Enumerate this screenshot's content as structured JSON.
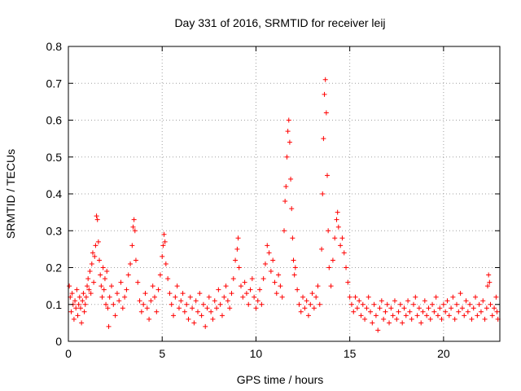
{
  "chart_data": {
    "type": "scatter",
    "title": "Day 331 of 2016, SRMTID for receiver leij",
    "xlabel": "GPS time / hours",
    "ylabel": "SRMTID / TECUs",
    "xlim": [
      0,
      23
    ],
    "ylim": [
      0,
      0.8
    ],
    "x_ticks": [
      0,
      5,
      10,
      15,
      20
    ],
    "x_tick_labels": [
      "0",
      "5",
      "10",
      "15",
      "20"
    ],
    "y_ticks": [
      0,
      0.1,
      0.2,
      0.3,
      0.4,
      0.5,
      0.6,
      0.7,
      0.8
    ],
    "y_tick_labels": [
      "0",
      "0.1",
      "0.2",
      "0.3",
      "0.4",
      "0.5",
      "0.6",
      "0.7",
      "0.8"
    ],
    "grid": true,
    "marker": "+",
    "color": "#ff0000",
    "series": [
      {
        "name": "SRMTID",
        "points": [
          [
            0.05,
            0.15
          ],
          [
            0.1,
            0.12
          ],
          [
            0.15,
            0.08
          ],
          [
            0.2,
            0.13
          ],
          [
            0.25,
            0.1
          ],
          [
            0.3,
            0.06
          ],
          [
            0.35,
            0.11
          ],
          [
            0.4,
            0.09
          ],
          [
            0.45,
            0.14
          ],
          [
            0.5,
            0.07
          ],
          [
            0.55,
            0.1
          ],
          [
            0.6,
            0.12
          ],
          [
            0.65,
            0.09
          ],
          [
            0.7,
            0.05
          ],
          [
            0.75,
            0.11
          ],
          [
            0.8,
            0.13
          ],
          [
            0.85,
            0.08
          ],
          [
            0.9,
            0.1
          ],
          [
            0.95,
            0.12
          ],
          [
            1.0,
            0.15
          ],
          [
            1.05,
            0.17
          ],
          [
            1.1,
            0.14
          ],
          [
            1.15,
            0.19
          ],
          [
            1.2,
            0.13
          ],
          [
            1.25,
            0.21
          ],
          [
            1.3,
            0.24
          ],
          [
            1.35,
            0.16
          ],
          [
            1.4,
            0.23
          ],
          [
            1.45,
            0.26
          ],
          [
            1.5,
            0.34
          ],
          [
            1.55,
            0.33
          ],
          [
            1.6,
            0.27
          ],
          [
            1.65,
            0.22
          ],
          [
            1.7,
            0.18
          ],
          [
            1.75,
            0.15
          ],
          [
            1.8,
            0.12
          ],
          [
            1.85,
            0.2
          ],
          [
            1.9,
            0.14
          ],
          [
            1.95,
            0.17
          ],
          [
            2.0,
            0.1
          ],
          [
            2.05,
            0.19
          ],
          [
            2.1,
            0.09
          ],
          [
            2.15,
            0.04
          ],
          [
            2.2,
            0.12
          ],
          [
            2.3,
            0.15
          ],
          [
            2.4,
            0.1
          ],
          [
            2.5,
            0.07
          ],
          [
            2.6,
            0.13
          ],
          [
            2.7,
            0.11
          ],
          [
            2.8,
            0.16
          ],
          [
            2.9,
            0.09
          ],
          [
            3.0,
            0.12
          ],
          [
            3.1,
            0.14
          ],
          [
            3.2,
            0.18
          ],
          [
            3.3,
            0.21
          ],
          [
            3.4,
            0.26
          ],
          [
            3.45,
            0.31
          ],
          [
            3.5,
            0.33
          ],
          [
            3.55,
            0.3
          ],
          [
            3.6,
            0.22
          ],
          [
            3.7,
            0.16
          ],
          [
            3.8,
            0.11
          ],
          [
            3.9,
            0.08
          ],
          [
            4.0,
            0.1
          ],
          [
            4.1,
            0.13
          ],
          [
            4.2,
            0.09
          ],
          [
            4.3,
            0.06
          ],
          [
            4.4,
            0.11
          ],
          [
            4.5,
            0.15
          ],
          [
            4.6,
            0.12
          ],
          [
            4.7,
            0.08
          ],
          [
            4.8,
            0.14
          ],
          [
            4.9,
            0.18
          ],
          [
            5.0,
            0.23
          ],
          [
            5.05,
            0.26
          ],
          [
            5.1,
            0.29
          ],
          [
            5.15,
            0.27
          ],
          [
            5.2,
            0.21
          ],
          [
            5.3,
            0.17
          ],
          [
            5.4,
            0.13
          ],
          [
            5.5,
            0.1
          ],
          [
            5.6,
            0.07
          ],
          [
            5.7,
            0.12
          ],
          [
            5.8,
            0.15
          ],
          [
            5.9,
            0.09
          ],
          [
            6.0,
            0.11
          ],
          [
            6.1,
            0.13
          ],
          [
            6.2,
            0.08
          ],
          [
            6.3,
            0.1
          ],
          [
            6.4,
            0.06
          ],
          [
            6.5,
            0.12
          ],
          [
            6.6,
            0.09
          ],
          [
            6.7,
            0.05
          ],
          [
            6.8,
            0.11
          ],
          [
            6.9,
            0.08
          ],
          [
            7.0,
            0.13
          ],
          [
            7.1,
            0.07
          ],
          [
            7.2,
            0.1
          ],
          [
            7.3,
            0.04
          ],
          [
            7.4,
            0.09
          ],
          [
            7.5,
            0.12
          ],
          [
            7.6,
            0.08
          ],
          [
            7.7,
            0.06
          ],
          [
            7.8,
            0.11
          ],
          [
            7.9,
            0.09
          ],
          [
            8.0,
            0.14
          ],
          [
            8.1,
            0.1
          ],
          [
            8.2,
            0.07
          ],
          [
            8.3,
            0.12
          ],
          [
            8.4,
            0.15
          ],
          [
            8.5,
            0.11
          ],
          [
            8.6,
            0.09
          ],
          [
            8.7,
            0.13
          ],
          [
            8.8,
            0.17
          ],
          [
            8.9,
            0.22
          ],
          [
            9.0,
            0.25
          ],
          [
            9.05,
            0.28
          ],
          [
            9.1,
            0.2
          ],
          [
            9.2,
            0.15
          ],
          [
            9.3,
            0.12
          ],
          [
            9.4,
            0.16
          ],
          [
            9.5,
            0.13
          ],
          [
            9.6,
            0.1
          ],
          [
            9.7,
            0.14
          ],
          [
            9.8,
            0.17
          ],
          [
            9.9,
            0.12
          ],
          [
            10.0,
            0.09
          ],
          [
            10.1,
            0.11
          ],
          [
            10.2,
            0.14
          ],
          [
            10.3,
            0.1
          ],
          [
            10.4,
            0.17
          ],
          [
            10.5,
            0.21
          ],
          [
            10.6,
            0.26
          ],
          [
            10.7,
            0.24
          ],
          [
            10.8,
            0.19
          ],
          [
            10.9,
            0.22
          ],
          [
            11.0,
            0.16
          ],
          [
            11.1,
            0.13
          ],
          [
            11.2,
            0.18
          ],
          [
            11.3,
            0.15
          ],
          [
            11.4,
            0.12
          ],
          [
            11.5,
            0.3
          ],
          [
            11.55,
            0.38
          ],
          [
            11.6,
            0.42
          ],
          [
            11.65,
            0.5
          ],
          [
            11.7,
            0.57
          ],
          [
            11.75,
            0.6
          ],
          [
            11.8,
            0.54
          ],
          [
            11.85,
            0.44
          ],
          [
            11.9,
            0.36
          ],
          [
            11.95,
            0.28
          ],
          [
            12.0,
            0.22
          ],
          [
            12.05,
            0.18
          ],
          [
            12.1,
            0.2
          ],
          [
            12.2,
            0.14
          ],
          [
            12.3,
            0.1
          ],
          [
            12.4,
            0.08
          ],
          [
            12.5,
            0.12
          ],
          [
            12.6,
            0.09
          ],
          [
            12.7,
            0.11
          ],
          [
            12.8,
            0.07
          ],
          [
            12.9,
            0.1
          ],
          [
            13.0,
            0.13
          ],
          [
            13.1,
            0.09
          ],
          [
            13.2,
            0.12
          ],
          [
            13.3,
            0.15
          ],
          [
            13.4,
            0.1
          ],
          [
            13.5,
            0.25
          ],
          [
            13.55,
            0.4
          ],
          [
            13.6,
            0.55
          ],
          [
            13.65,
            0.67
          ],
          [
            13.7,
            0.71
          ],
          [
            13.75,
            0.62
          ],
          [
            13.8,
            0.45
          ],
          [
            13.85,
            0.3
          ],
          [
            13.9,
            0.2
          ],
          [
            14.0,
            0.15
          ],
          [
            14.1,
            0.22
          ],
          [
            14.2,
            0.28
          ],
          [
            14.3,
            0.33
          ],
          [
            14.35,
            0.35
          ],
          [
            14.4,
            0.31
          ],
          [
            14.5,
            0.26
          ],
          [
            14.6,
            0.28
          ],
          [
            14.7,
            0.24
          ],
          [
            14.8,
            0.2
          ],
          [
            14.9,
            0.16
          ],
          [
            15.0,
            0.12
          ],
          [
            15.1,
            0.1
          ],
          [
            15.2,
            0.08
          ],
          [
            15.3,
            0.12
          ],
          [
            15.4,
            0.09
          ],
          [
            15.5,
            0.11
          ],
          [
            15.6,
            0.07
          ],
          [
            15.7,
            0.1
          ],
          [
            15.8,
            0.06
          ],
          [
            15.9,
            0.09
          ],
          [
            16.0,
            0.12
          ],
          [
            16.1,
            0.08
          ],
          [
            16.2,
            0.05
          ],
          [
            16.3,
            0.1
          ],
          [
            16.4,
            0.07
          ],
          [
            16.5,
            0.03
          ],
          [
            16.6,
            0.09
          ],
          [
            16.7,
            0.11
          ],
          [
            16.8,
            0.06
          ],
          [
            16.9,
            0.08
          ],
          [
            17.0,
            0.1
          ],
          [
            17.1,
            0.05
          ],
          [
            17.2,
            0.09
          ],
          [
            17.3,
            0.07
          ],
          [
            17.4,
            0.11
          ],
          [
            17.5,
            0.06
          ],
          [
            17.6,
            0.08
          ],
          [
            17.7,
            0.1
          ],
          [
            17.8,
            0.05
          ],
          [
            17.9,
            0.09
          ],
          [
            18.0,
            0.07
          ],
          [
            18.1,
            0.11
          ],
          [
            18.2,
            0.08
          ],
          [
            18.3,
            0.06
          ],
          [
            18.4,
            0.1
          ],
          [
            18.5,
            0.12
          ],
          [
            18.6,
            0.07
          ],
          [
            18.7,
            0.09
          ],
          [
            18.8,
            0.05
          ],
          [
            18.9,
            0.08
          ],
          [
            19.0,
            0.11
          ],
          [
            19.1,
            0.07
          ],
          [
            19.2,
            0.09
          ],
          [
            19.3,
            0.06
          ],
          [
            19.4,
            0.1
          ],
          [
            19.5,
            0.08
          ],
          [
            19.6,
            0.12
          ],
          [
            19.7,
            0.07
          ],
          [
            19.8,
            0.09
          ],
          [
            19.9,
            0.06
          ],
          [
            20.0,
            0.1
          ],
          [
            20.1,
            0.08
          ],
          [
            20.2,
            0.11
          ],
          [
            20.3,
            0.07
          ],
          [
            20.4,
            0.09
          ],
          [
            20.5,
            0.12
          ],
          [
            20.6,
            0.06
          ],
          [
            20.7,
            0.1
          ],
          [
            20.8,
            0.08
          ],
          [
            20.9,
            0.13
          ],
          [
            21.0,
            0.09
          ],
          [
            21.1,
            0.07
          ],
          [
            21.2,
            0.11
          ],
          [
            21.3,
            0.08
          ],
          [
            21.4,
            0.1
          ],
          [
            21.5,
            0.06
          ],
          [
            21.6,
            0.09
          ],
          [
            21.7,
            0.12
          ],
          [
            21.8,
            0.07
          ],
          [
            21.9,
            0.1
          ],
          [
            22.0,
            0.08
          ],
          [
            22.1,
            0.11
          ],
          [
            22.2,
            0.06
          ],
          [
            22.3,
            0.09
          ],
          [
            22.35,
            0.15
          ],
          [
            22.4,
            0.18
          ],
          [
            22.45,
            0.16
          ],
          [
            22.5,
            0.1
          ],
          [
            22.6,
            0.07
          ],
          [
            22.7,
            0.09
          ],
          [
            22.8,
            0.12
          ],
          [
            22.85,
            0.08
          ],
          [
            22.9,
            0.06
          ]
        ]
      }
    ]
  }
}
